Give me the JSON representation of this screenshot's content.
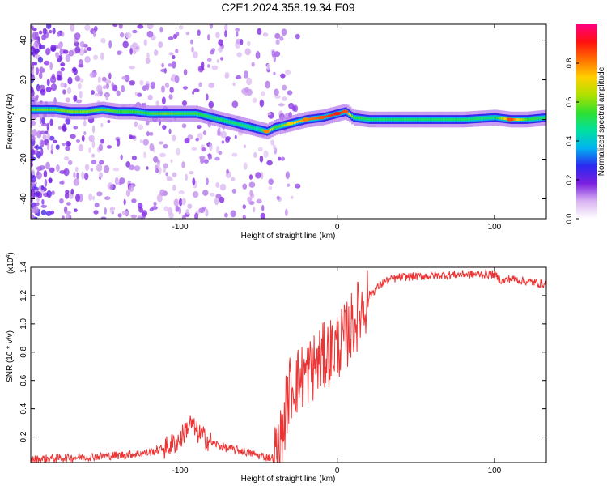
{
  "title": "C2E1.2024.358.19.34.E09",
  "chart_data": [
    {
      "type": "heatmap",
      "title": "C2E1.2024.358.19.34.E09",
      "xlabel": "Height of straight line (km)",
      "ylabel": "Frequency (Hz)",
      "xlim": [
        -195,
        133
      ],
      "ylim": [
        -50,
        48
      ],
      "xticks": [
        -100,
        0,
        100
      ],
      "yticks": [
        -40,
        -20,
        0,
        20,
        40
      ],
      "colorbar": {
        "label": "Normalized spectral amplitude",
        "range": [
          0,
          1
        ],
        "ticks": [
          "0.0",
          "0.2",
          "0.4",
          "0.6",
          "0.8"
        ],
        "tick_values": [
          0.0,
          0.2,
          0.4,
          0.6,
          0.8
        ],
        "colormap": [
          "#ffffff",
          "#d9b3f2",
          "#7a1fe0",
          "#2a2af0",
          "#00b4f0",
          "#00e0a0",
          "#30e030",
          "#b0e000",
          "#ffd000",
          "#ff7000",
          "#ff1010",
          "#ff0080"
        ]
      },
      "ridge_x": [
        -190,
        -180,
        -170,
        -160,
        -150,
        -140,
        -130,
        -120,
        -110,
        -100,
        -90,
        -80,
        -70,
        -60,
        -50,
        -45,
        -40,
        -35,
        -30,
        -20,
        -10,
        0,
        5,
        10,
        20,
        40,
        60,
        80,
        100,
        110,
        120,
        133
      ],
      "ridge_y": [
        5,
        5,
        4,
        4,
        5,
        4,
        4,
        3,
        3,
        3,
        3,
        1,
        -1,
        -3,
        -5,
        -6,
        -4,
        -3,
        -2,
        0,
        1,
        3,
        4,
        1,
        0,
        0,
        0,
        0,
        1,
        0,
        0,
        1
      ],
      "ridge_amplitude": [
        0.6,
        0.6,
        0.6,
        0.6,
        0.6,
        0.55,
        0.55,
        0.55,
        0.6,
        0.55,
        0.55,
        0.5,
        0.5,
        0.5,
        0.45,
        0.8,
        0.55,
        0.6,
        0.7,
        0.8,
        0.85,
        0.9,
        0.85,
        0.55,
        0.5,
        0.5,
        0.5,
        0.5,
        0.5,
        0.85,
        0.55,
        0.5
      ]
    },
    {
      "type": "line",
      "xlabel": "Height of straight line (km)",
      "ylabel": "SNR (10 * v/v)",
      "y_multiplier_label": "(x10",
      "y_multiplier_exp": "4",
      "xlim": [
        -195,
        133
      ],
      "ylim": [
        0.02,
        1.4
      ],
      "xticks": [
        -100,
        0,
        100
      ],
      "yticks": [
        0.2,
        0.4,
        0.6,
        0.8,
        1.0,
        1.2,
        1.4
      ],
      "series": [
        {
          "color": "#ee3333",
          "x": [
            -195,
            -180,
            -160,
            -140,
            -120,
            -110,
            -100,
            -96,
            -93,
            -90,
            -85,
            -80,
            -70,
            -60,
            -50,
            -45,
            -40,
            -38,
            -35,
            -32,
            -30,
            -25,
            -20,
            -15,
            -10,
            -5,
            0,
            5,
            10,
            15,
            20,
            30,
            40,
            60,
            80,
            100,
            105,
            110,
            120,
            133
          ],
          "y": [
            0.04,
            0.05,
            0.06,
            0.07,
            0.09,
            0.12,
            0.18,
            0.26,
            0.3,
            0.24,
            0.2,
            0.16,
            0.12,
            0.1,
            0.07,
            0.06,
            0.05,
            0.1,
            0.2,
            0.45,
            0.55,
            0.6,
            0.65,
            0.7,
            0.75,
            0.8,
            0.85,
            0.9,
            1.0,
            1.1,
            1.2,
            1.3,
            1.33,
            1.34,
            1.35,
            1.35,
            1.3,
            1.32,
            1.3,
            1.28
          ]
        }
      ]
    }
  ]
}
